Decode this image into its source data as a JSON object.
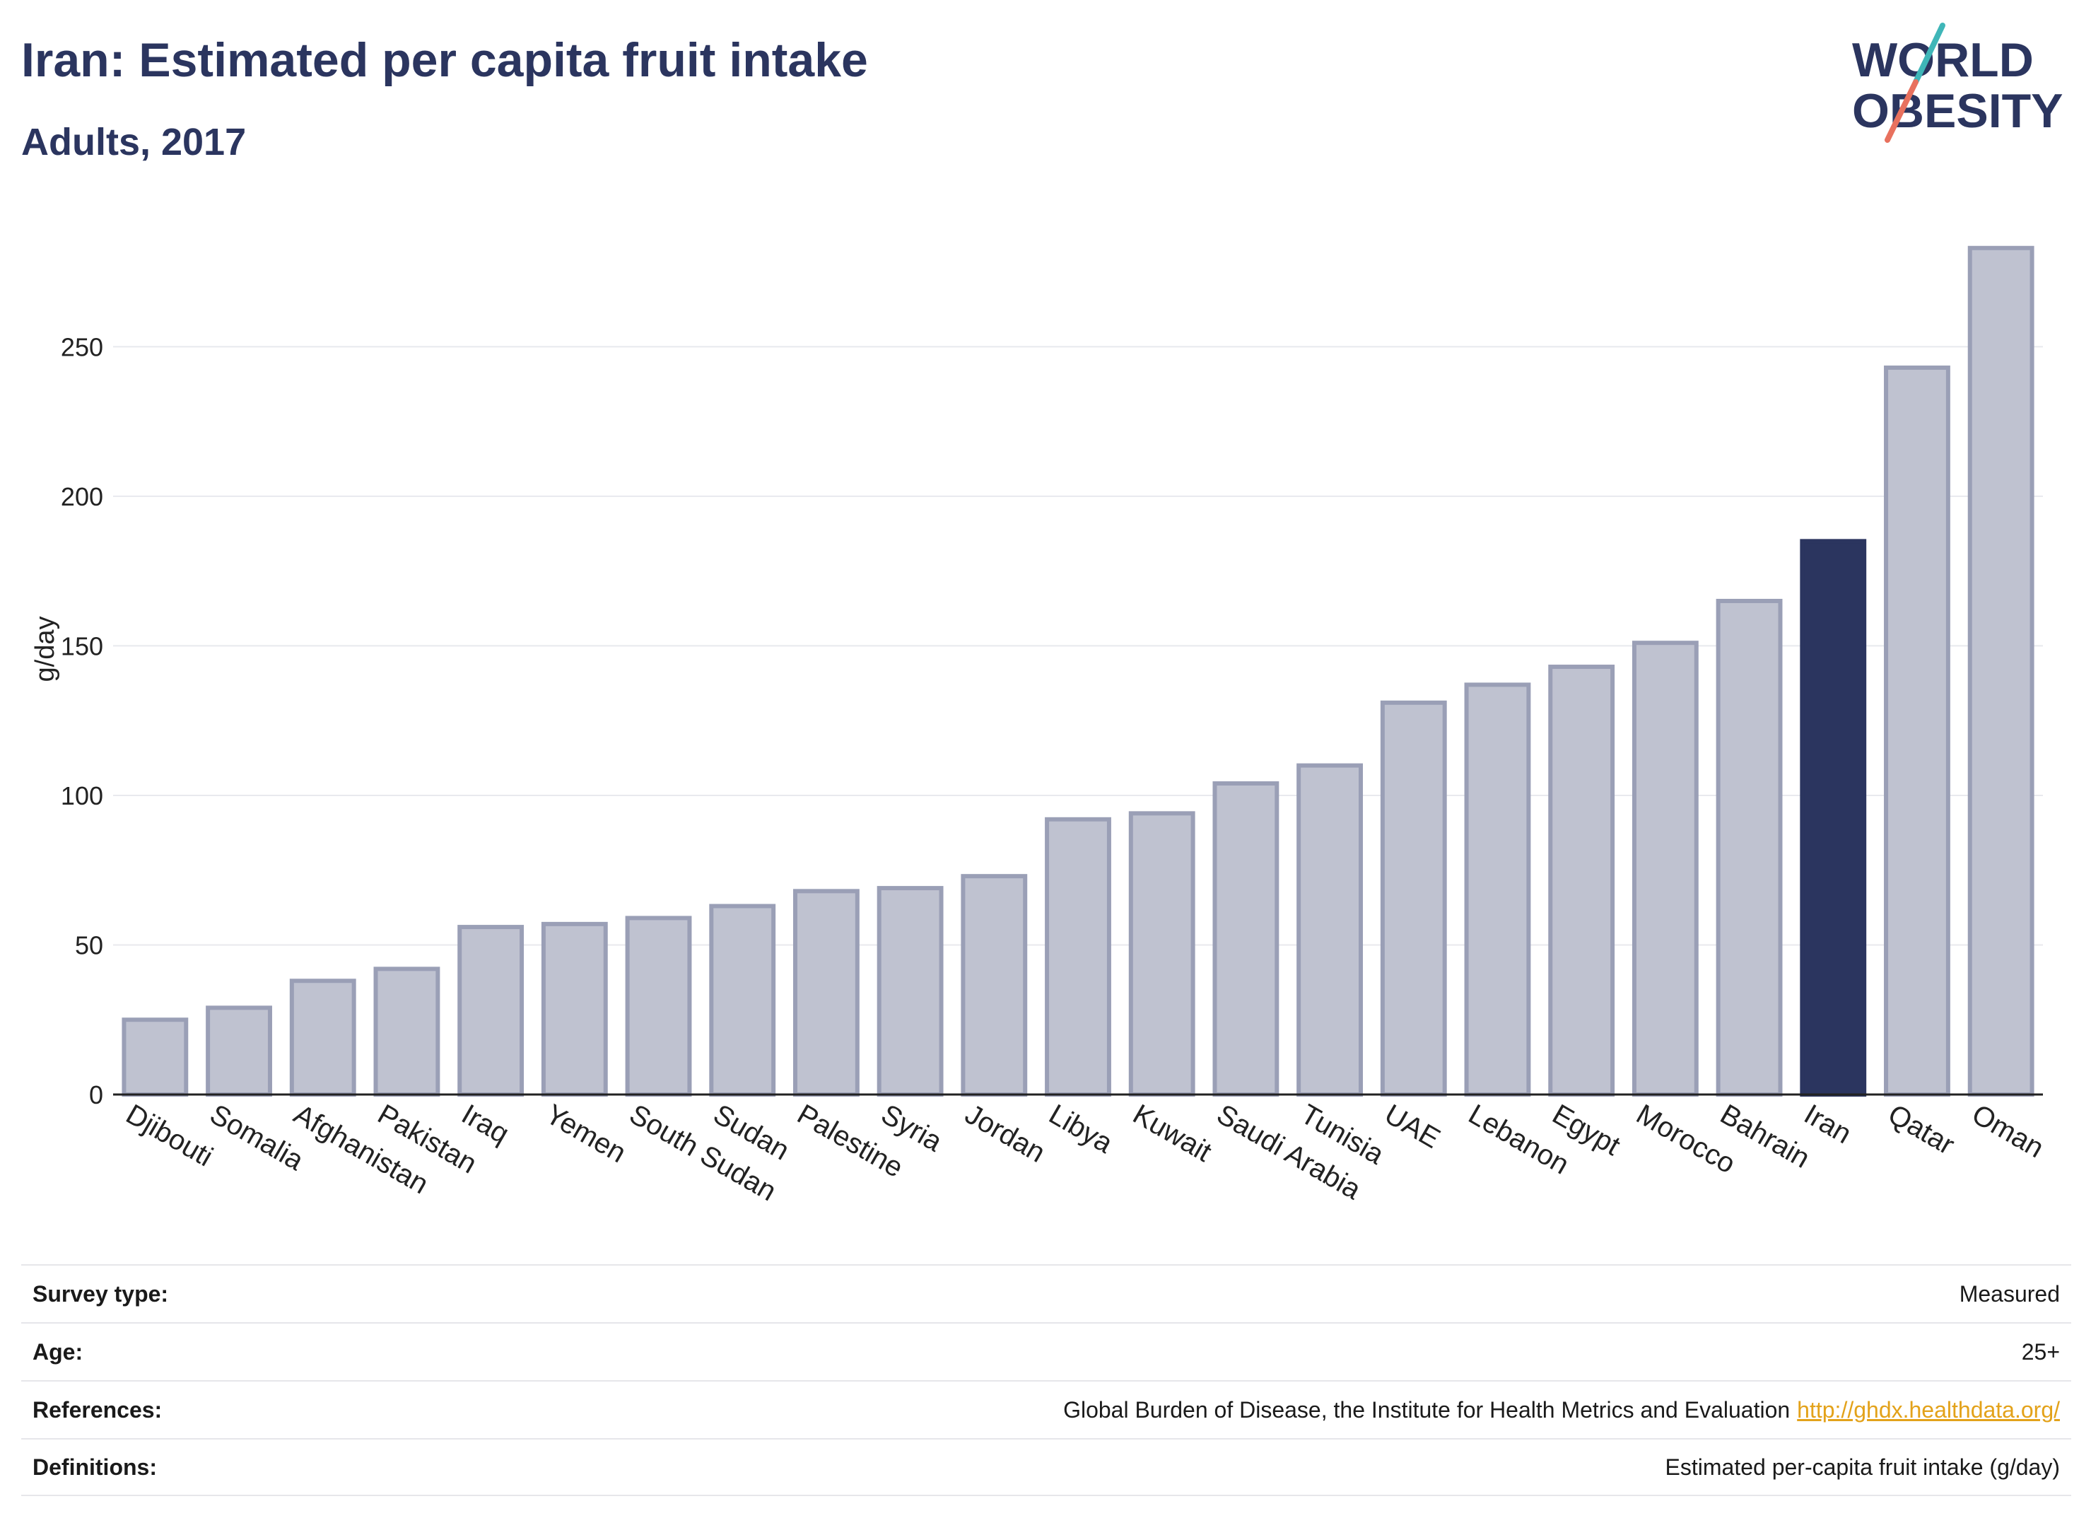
{
  "header": {
    "title": "Iran: Estimated per capita fruit intake",
    "subtitle": "Adults, 2017"
  },
  "logo": {
    "line1": "WORLD",
    "line2": "OBESITY"
  },
  "chart_data": {
    "type": "bar",
    "title": "Iran: Estimated per capita fruit intake",
    "subtitle": "Adults, 2017",
    "xlabel": "",
    "ylabel": "g/day",
    "ylim": [
      0,
      295
    ],
    "yticks": [
      0,
      50,
      100,
      150,
      200,
      250
    ],
    "grid": true,
    "legend": "none",
    "categories": [
      "Djibouti",
      "Somalia",
      "Afghanistan",
      "Pakistan",
      "Iraq",
      "Yemen",
      "South Sudan",
      "Sudan",
      "Palestine",
      "Syria",
      "Jordan",
      "Libya",
      "Kuwait",
      "Saudi Arabia",
      "Tunisia",
      "UAE",
      "Lebanon",
      "Egypt",
      "Morocco",
      "Bahrain",
      "Iran",
      "Qatar",
      "Oman"
    ],
    "values": [
      25,
      29,
      38,
      42,
      56,
      57,
      59,
      63,
      68,
      69,
      73,
      92,
      94,
      104,
      110,
      131,
      137,
      143,
      151,
      165,
      185,
      243,
      283
    ],
    "highlight": "Iran",
    "colors": {
      "bar": "#bfc2d0",
      "bar_border": "#9a9fb6",
      "highlight": "#2b355f"
    }
  },
  "info": {
    "rows": [
      {
        "key": "Survey type:",
        "value": "Measured"
      },
      {
        "key": "Age:",
        "value": "25+"
      },
      {
        "key": "References:",
        "value": "Global Burden of Disease, the Institute for Health Metrics and Evaluation",
        "link": "http://ghdx.healthdata.org/"
      },
      {
        "key": "Definitions:",
        "value": "Estimated per-capita fruit intake (g/day)"
      }
    ]
  }
}
